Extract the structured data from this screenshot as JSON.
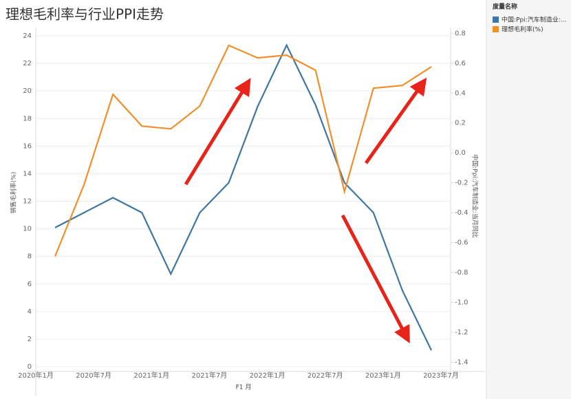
{
  "chart_data": {
    "type": "line",
    "title": "理想毛利率与行业PPI走势",
    "x_label": "F1 月",
    "y_label": "销售毛利率(%)",
    "y2_label": "中国:Ppi:汽车制造业:当月同比",
    "legend_title": "度量名称",
    "legend_position": "right",
    "grid": true,
    "x": [
      "2020-03",
      "2020-06",
      "2020-09",
      "2020-12",
      "2021-03",
      "2021-06",
      "2021-09",
      "2021-12",
      "2022-03",
      "2022-06",
      "2022-09",
      "2022-12",
      "2023-03",
      "2023-06"
    ],
    "xlim": [
      "2020-01",
      "2023-08"
    ],
    "xticks": [
      {
        "value": "2020-01",
        "label": "2020年1月"
      },
      {
        "value": "2020-07",
        "label": "2020年7月"
      },
      {
        "value": "2021-01",
        "label": "2021年1月"
      },
      {
        "value": "2021-07",
        "label": "2021年7月"
      },
      {
        "value": "2022-01",
        "label": "2022年1月"
      },
      {
        "value": "2022-07",
        "label": "2022年7月"
      },
      {
        "value": "2023-01",
        "label": "2023年1月"
      },
      {
        "value": "2023-07",
        "label": "2023年7月"
      }
    ],
    "ylim": [
      0,
      24.4
    ],
    "yticks": [
      0,
      2,
      4,
      6,
      8,
      10,
      12,
      14,
      16,
      18,
      20,
      22,
      24
    ],
    "y2lim": [
      -1.43,
      0.82
    ],
    "y2ticks": [
      0.8,
      0.6,
      0.4,
      0.2,
      {
        "value": 0,
        "label": "0.0"
      },
      -0.2,
      -0.4,
      -0.6,
      -0.8,
      {
        "value": -1,
        "label": "-1.0"
      },
      -1.2,
      -1.4
    ],
    "series": [
      {
        "name": "中国:Ppi:汽车制造业:...",
        "color": "#3d76a3",
        "axis": "y2",
        "values": [
          -0.5,
          -0.4,
          -0.3,
          -0.4,
          -0.81,
          -0.4,
          -0.2,
          0.31,
          0.72,
          0.32,
          -0.2,
          -0.4,
          -0.92,
          -1.32
        ]
      },
      {
        "name": "理想毛利率(%)",
        "color": "#f28e2b",
        "axis": "y",
        "values": [
          8.0,
          13.2,
          19.75,
          17.45,
          17.25,
          18.9,
          23.3,
          22.4,
          22.6,
          21.5,
          12.7,
          20.2,
          20.4,
          21.75
        ]
      }
    ]
  }
}
